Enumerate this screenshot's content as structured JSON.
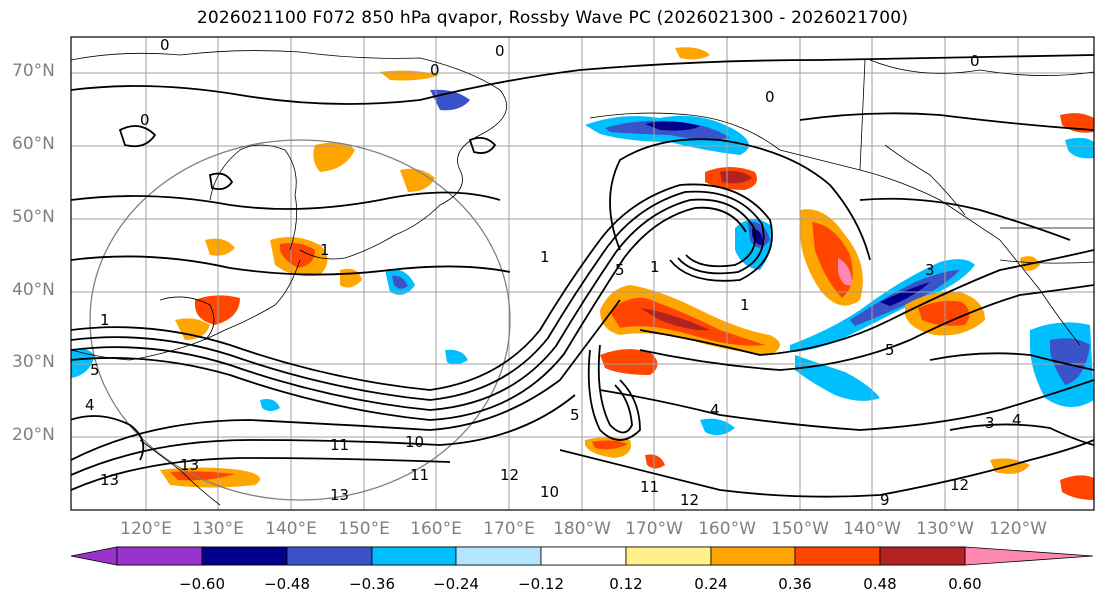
{
  "title": "2026021100 F072 850 hPa qvapor, Rossby Wave PC (2026021300 - 2026021700)",
  "lat_labels": [
    "70°N",
    "60°N",
    "50°N",
    "40°N",
    "30°N",
    "20°N"
  ],
  "lon_labels": [
    "120°E",
    "130°E",
    "140°E",
    "150°E",
    "160°E",
    "170°E",
    "180°W",
    "170°W",
    "160°W",
    "150°W",
    "140°W",
    "130°W",
    "120°W"
  ],
  "colorbar": {
    "ticks": [
      "−0.60",
      "−0.48",
      "−0.36",
      "−0.24",
      "−0.12",
      "0.12",
      "0.24",
      "0.36",
      "0.48",
      "0.60"
    ],
    "colors": [
      "#9933cc",
      "#00008b",
      "#3a53c8",
      "#00bfff",
      "#b3e5fc",
      "#ffffff",
      "#fff08a",
      "#ffa500",
      "#ff4500",
      "#b22222",
      "#ff88b0"
    ]
  },
  "contour_labels": [
    "0",
    "0",
    "0",
    "0",
    "0",
    "0",
    "1",
    "1",
    "1",
    "1",
    "1",
    "3",
    "3",
    "5",
    "5",
    "5",
    "4",
    "4",
    "4",
    "5",
    "10",
    "10",
    "11",
    "11",
    "11",
    "12",
    "12",
    "12",
    "13",
    "13",
    "13",
    "9"
  ],
  "palette": {
    "gray": "#808080",
    "ink": "#000000"
  }
}
